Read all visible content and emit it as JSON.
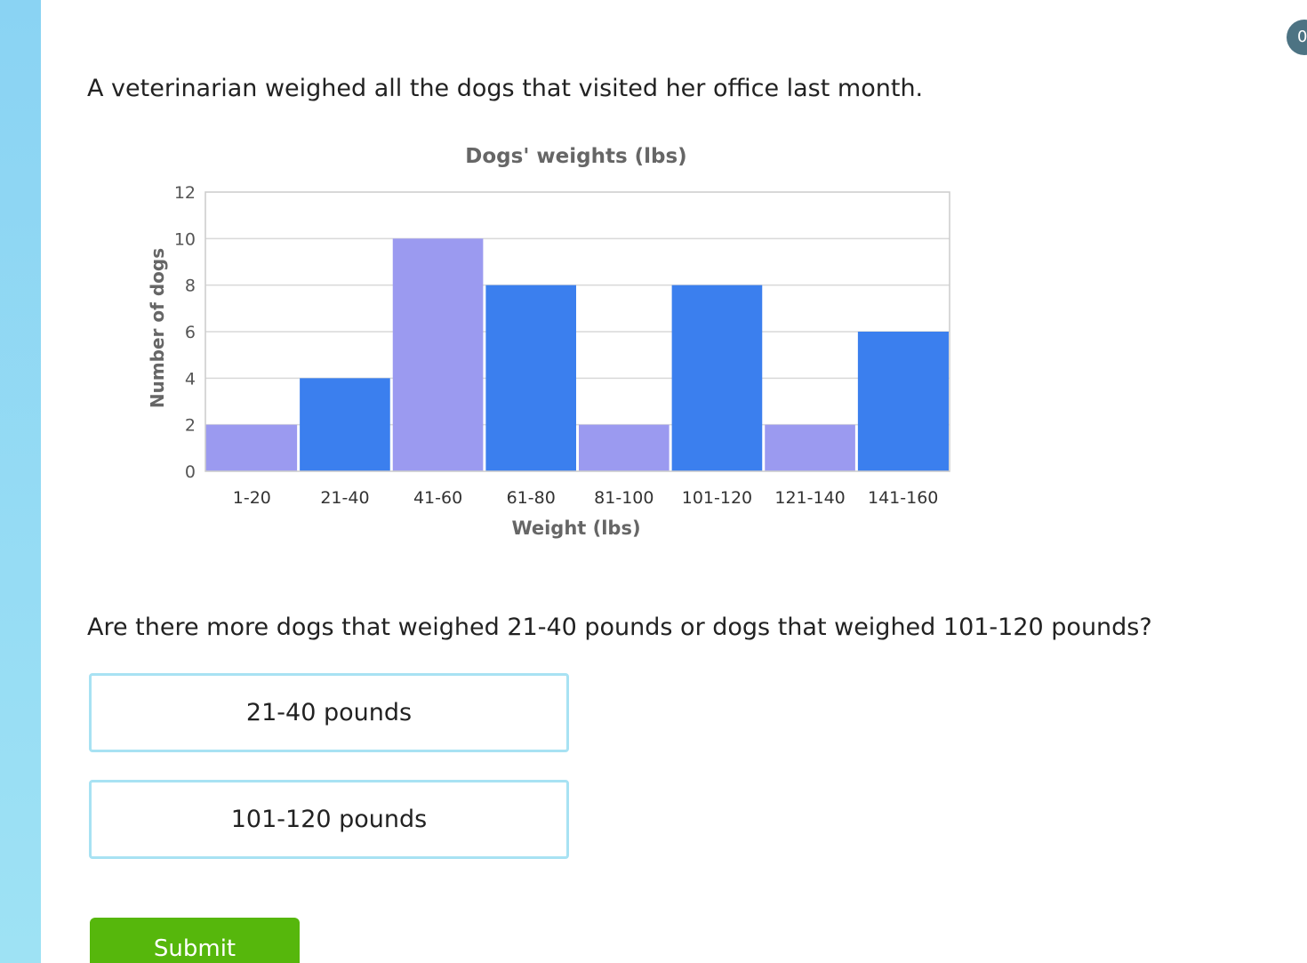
{
  "question": {
    "intro": "A veterinarian weighed all the dogs that visited her office last month.",
    "prompt": "Are there more dogs that weighed 21-40 pounds or dogs that weighed 101-120 pounds?"
  },
  "choices": [
    {
      "label": "21-40 pounds"
    },
    {
      "label": "101-120 pounds"
    }
  ],
  "submit_label": "Submit",
  "corner_badge": "0",
  "colors": {
    "bar_light": "#9b9af0",
    "bar_dark": "#3b7fee",
    "choice_border": "#a8e2f3",
    "submit_bg": "#56b70c",
    "side_strip": "#8ad3f3"
  },
  "chart_data": {
    "type": "bar",
    "title": "Dogs' weights (lbs)",
    "xlabel": "Weight (lbs)",
    "ylabel": "Number of dogs",
    "categories": [
      "1-20",
      "21-40",
      "41-60",
      "61-80",
      "81-100",
      "101-120",
      "121-140",
      "141-160"
    ],
    "values": [
      2,
      4,
      10,
      8,
      2,
      8,
      2,
      6
    ],
    "bar_colors": [
      "#9b9af0",
      "#3b7fee",
      "#9b9af0",
      "#3b7fee",
      "#9b9af0",
      "#3b7fee",
      "#9b9af0",
      "#3b7fee"
    ],
    "ylim": [
      0,
      12
    ],
    "yticks": [
      0,
      2,
      4,
      6,
      8,
      10,
      12
    ],
    "grid": true,
    "legend": "none"
  }
}
